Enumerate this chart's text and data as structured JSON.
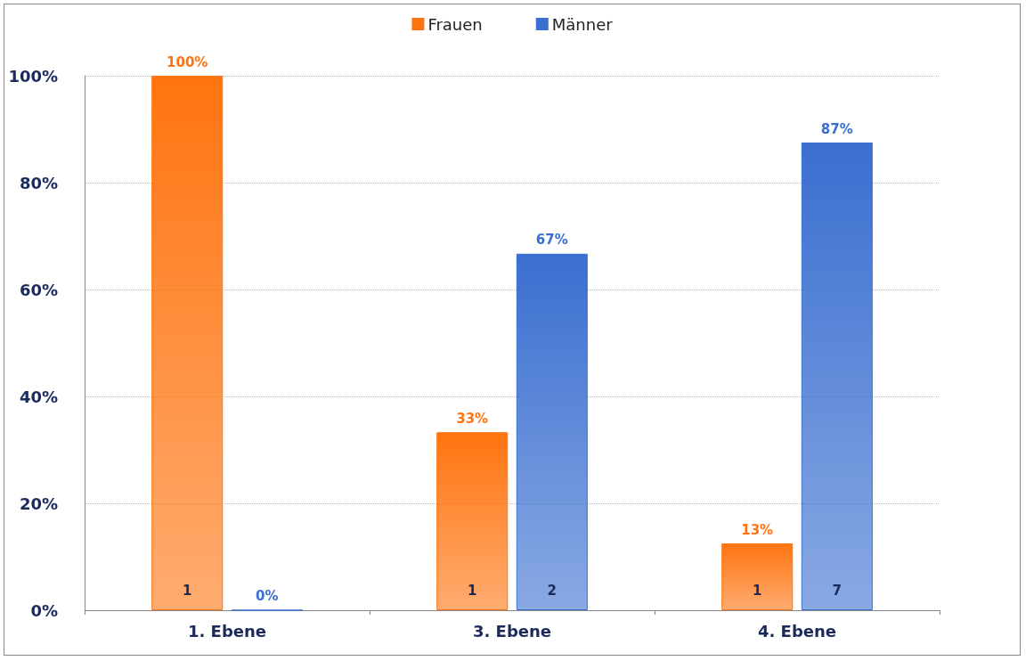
{
  "chart_data": {
    "type": "bar",
    "categories": [
      "1. Ebene",
      "3. Ebene",
      "4. Ebene"
    ],
    "series": [
      {
        "name": "Frauen",
        "color": "#ff7410",
        "values": [
          100,
          33.3,
          12.5
        ],
        "value_labels": [
          "100%",
          "33%",
          "13%"
        ]
      },
      {
        "name": "Männer",
        "color": "#3a6fd0",
        "values": [
          0,
          66.7,
          87.5
        ],
        "value_labels": [
          "0%",
          "67%",
          "87%"
        ]
      }
    ],
    "annotations": [
      "1",
      "1",
      "2",
      "1",
      "7"
    ],
    "ylim": [
      0,
      100
    ],
    "yticks": [
      {
        "value": 0,
        "label": "0%"
      },
      {
        "value": 20,
        "label": "20%"
      },
      {
        "value": 40,
        "label": "40%"
      },
      {
        "value": 60,
        "label": "60%"
      },
      {
        "value": 80,
        "label": "80%"
      },
      {
        "value": 100,
        "label": "100%"
      }
    ],
    "grid": "y",
    "legend": "top"
  }
}
